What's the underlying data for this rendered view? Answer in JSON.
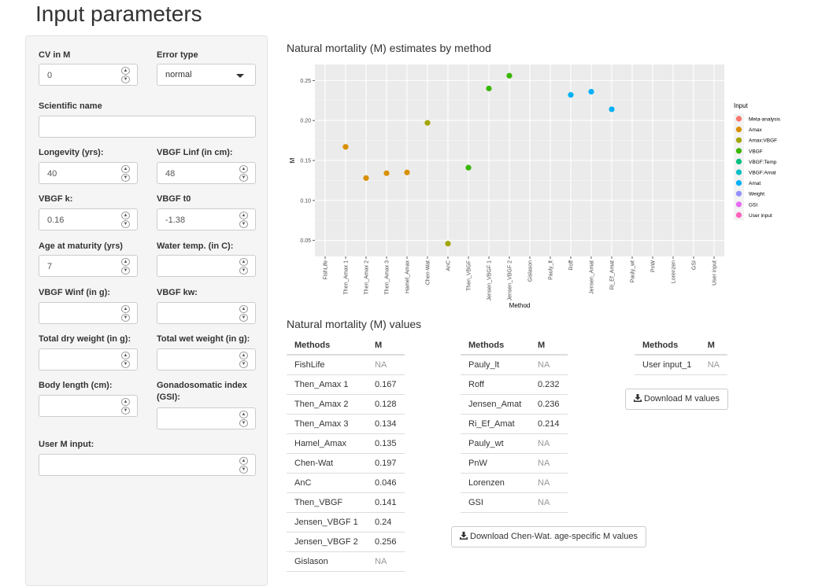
{
  "page": {
    "title": "Input parameters"
  },
  "sidebar": {
    "cv_m": {
      "label": "CV in M",
      "value": "0"
    },
    "error_type": {
      "label": "Error type",
      "value": "normal"
    },
    "scientific_name": {
      "label": "Scientific name",
      "value": ""
    },
    "longevity": {
      "label": "Longevity (yrs):",
      "value": "40"
    },
    "vbgf_linf": {
      "label": "VBGF Linf (in cm):",
      "value": "48"
    },
    "vbgf_k": {
      "label": "VBGF k:",
      "value": "0.16"
    },
    "vbgf_t0": {
      "label": "VBGF t0",
      "value": "-1.38"
    },
    "age_maturity": {
      "label": "Age at maturity (yrs)",
      "value": "7"
    },
    "water_temp": {
      "label": "Water temp. (in C):",
      "value": ""
    },
    "vbgf_winf": {
      "label": "VBGF Winf (in g):",
      "value": ""
    },
    "vbgf_kw": {
      "label": "VBGF kw:",
      "value": ""
    },
    "dry_weight": {
      "label": "Total dry weight (in g):",
      "value": ""
    },
    "wet_weight": {
      "label": "Total wet weight (in g):",
      "value": ""
    },
    "body_length": {
      "label": "Body length (cm):",
      "value": ""
    },
    "gsi": {
      "label": "Gonadosomatic index (GSI):",
      "value": ""
    },
    "user_m": {
      "label": "User M input:",
      "value": ""
    }
  },
  "plot_section": {
    "title": "Natural mortality (M) estimates by method"
  },
  "chart_data": {
    "type": "scatter",
    "title": "",
    "xlabel": "Method",
    "ylabel": "M",
    "categories": [
      "FishLife",
      "Then_Amax 1",
      "Then_Amax 2",
      "Then_Amax 3",
      "Hamel_Amax",
      "Chen-Wat",
      "AnC",
      "Then_VBGF",
      "Jensen_VBGF 1",
      "Jensen_VBGF 2",
      "Gislason",
      "Pauly_lt",
      "Roff",
      "Jensen_Amat",
      "Ri_Ef_Amat",
      "Pauly_wt",
      "PnW",
      "Lorenzen",
      "GSI",
      "User input"
    ],
    "ylim": [
      0.03,
      0.27
    ],
    "yticks": [
      0.05,
      0.1,
      0.15,
      0.2,
      0.25
    ],
    "ytick_labels": [
      "0.05",
      "0.10",
      "0.15",
      "0.20",
      "0.25"
    ],
    "grid": true,
    "legend": {
      "title": "Input",
      "placement": "right",
      "entries": [
        {
          "name": "Meta-analysis",
          "color": "#F8766D"
        },
        {
          "name": "Amax",
          "color": "#D89000"
        },
        {
          "name": "Amax:VBGF",
          "color": "#A3A500"
        },
        {
          "name": "VBGF",
          "color": "#39B600"
        },
        {
          "name": "VBGF:Temp",
          "color": "#00BF7D"
        },
        {
          "name": "VBGF:Amat",
          "color": "#00BFC4"
        },
        {
          "name": "Amat",
          "color": "#00B0F6"
        },
        {
          "name": "Weight",
          "color": "#9590FF"
        },
        {
          "name": "GSI",
          "color": "#E76BF3"
        },
        {
          "name": "User input",
          "color": "#FF62BC"
        }
      ]
    },
    "points": [
      {
        "x": "Then_Amax 1",
        "y": 0.167,
        "group": "Amax"
      },
      {
        "x": "Then_Amax 2",
        "y": 0.128,
        "group": "Amax"
      },
      {
        "x": "Then_Amax 3",
        "y": 0.134,
        "group": "Amax"
      },
      {
        "x": "Hamel_Amax",
        "y": 0.135,
        "group": "Amax"
      },
      {
        "x": "Chen-Wat",
        "y": 0.197,
        "group": "Amax:VBGF"
      },
      {
        "x": "AnC",
        "y": 0.046,
        "group": "Amax:VBGF"
      },
      {
        "x": "Then_VBGF",
        "y": 0.141,
        "group": "VBGF"
      },
      {
        "x": "Jensen_VBGF 1",
        "y": 0.24,
        "group": "VBGF"
      },
      {
        "x": "Jensen_VBGF 2",
        "y": 0.256,
        "group": "VBGF"
      },
      {
        "x": "Roff",
        "y": 0.232,
        "group": "Amat"
      },
      {
        "x": "Jensen_Amat",
        "y": 0.236,
        "group": "Amat"
      },
      {
        "x": "Ri_Ef_Amat",
        "y": 0.214,
        "group": "Amat"
      }
    ]
  },
  "values_section": {
    "title": "Natural mortality (M) values"
  },
  "table_headers": {
    "methods": "Methods",
    "m": "M"
  },
  "table1": [
    {
      "method": "FishLife",
      "m": "NA"
    },
    {
      "method": "Then_Amax 1",
      "m": "0.167"
    },
    {
      "method": "Then_Amax 2",
      "m": "0.128"
    },
    {
      "method": "Then_Amax 3",
      "m": "0.134"
    },
    {
      "method": "Hamel_Amax",
      "m": "0.135"
    },
    {
      "method": "Chen-Wat",
      "m": "0.197"
    },
    {
      "method": "AnC",
      "m": "0.046"
    },
    {
      "method": "Then_VBGF",
      "m": "0.141"
    },
    {
      "method": "Jensen_VBGF 1",
      "m": "0.24"
    },
    {
      "method": "Jensen_VBGF 2",
      "m": "0.256"
    },
    {
      "method": "Gislason",
      "m": "NA"
    }
  ],
  "table2": [
    {
      "method": "Pauly_lt",
      "m": "NA"
    },
    {
      "method": "Roff",
      "m": "0.232"
    },
    {
      "method": "Jensen_Amat",
      "m": "0.236"
    },
    {
      "method": "Ri_Ef_Amat",
      "m": "0.214"
    },
    {
      "method": "Pauly_wt",
      "m": "NA"
    },
    {
      "method": "PnW",
      "m": "NA"
    },
    {
      "method": "Lorenzen",
      "m": "NA"
    },
    {
      "method": "GSI",
      "m": "NA"
    }
  ],
  "table3": [
    {
      "method": "User input_1",
      "m": "NA"
    }
  ],
  "buttons": {
    "download_chenwat": "Download Chen-Wat. age-specific M values",
    "download_m": "Download M values"
  }
}
